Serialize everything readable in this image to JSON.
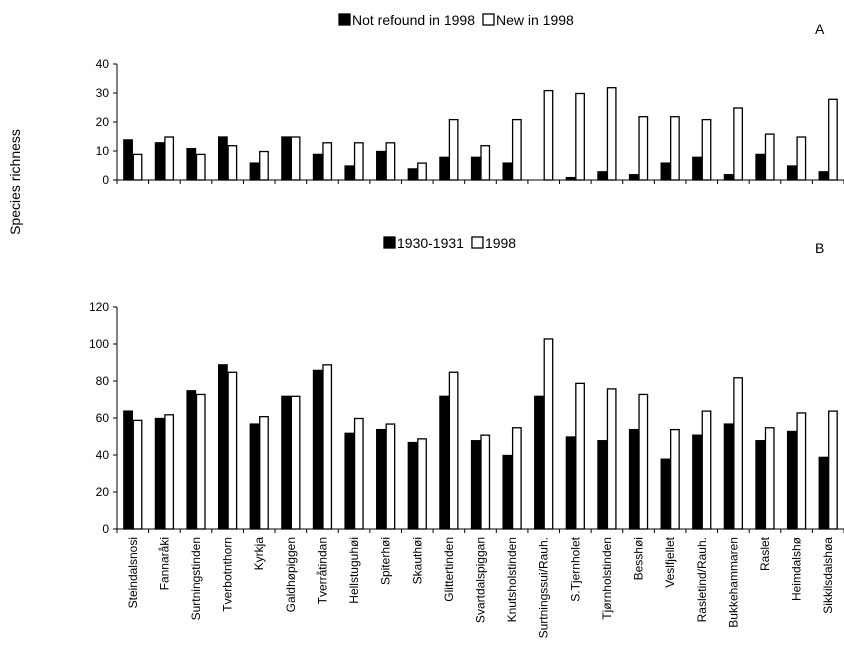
{
  "figure": {
    "ylabel": "Species richness"
  },
  "chart_data": [
    {
      "type": "bar",
      "panel_label": "A",
      "title": "",
      "xlabel": "",
      "ylabel": "Species richness",
      "ylim": [
        0,
        40
      ],
      "yticks": [
        0,
        10,
        20,
        30,
        40
      ],
      "grid": false,
      "legend_position": "top-center",
      "categories": [
        "Steindalsnosi",
        "Fannaråki",
        "Surtningstinden",
        "Tverbotnthorn",
        "Kyrkja",
        "Galdhøpiggen",
        "Tverråtindan",
        "Hellstuguhøi",
        "Spiterhøi",
        "Skauthøi",
        "Glittertinden",
        "Svartdalspiggan",
        "Knutsholstinden",
        "Surtningssui/Rauh.",
        "S.Tjernholet",
        "Tjørnholstinden",
        "Besshøi",
        "Veslfjellet",
        "Rasletind/Rauh.",
        "Bukkehammaren",
        "Raslet",
        "Heimdalshø",
        "Sikkilsdalshøa"
      ],
      "series": [
        {
          "name": "Not refound in 1998",
          "color": "#000000",
          "values": [
            14,
            13,
            11,
            15,
            6,
            15,
            9,
            5,
            10,
            4,
            8,
            8,
            6,
            0,
            1,
            3,
            2,
            6,
            8,
            2,
            9,
            5,
            3
          ]
        },
        {
          "name": "New in 1998",
          "color": "#ffffff",
          "values": [
            9,
            15,
            9,
            12,
            10,
            15,
            13,
            13,
            13,
            6,
            21,
            12,
            21,
            31,
            30,
            32,
            22,
            22,
            21,
            25,
            16,
            15,
            28
          ]
        }
      ]
    },
    {
      "type": "bar",
      "panel_label": "B",
      "title": "",
      "xlabel": "",
      "ylabel": "Species richness",
      "ylim": [
        0,
        120
      ],
      "yticks": [
        0,
        20,
        40,
        60,
        80,
        100,
        120
      ],
      "grid": false,
      "legend_position": "top-center",
      "categories": [
        "Steindalsnosi",
        "Fannaråki",
        "Surtningstinden",
        "Tverbotnthorn",
        "Kyrkja",
        "Galdhøpiggen",
        "Tverråtindan",
        "Hellstuguhøi",
        "Spiterhøi",
        "Skauthøi",
        "Glittertinden",
        "Svartdalspiggan",
        "Knutsholstinden",
        "Surtningssui/Rauh.",
        "S.Tjernholet",
        "Tjørnholstinden",
        "Besshøi",
        "Veslfjellet",
        "Rasletind/Rauh.",
        "Bukkehammaren",
        "Raslet",
        "Heimdalshø",
        "Sikkilsdalshøa"
      ],
      "series": [
        {
          "name": "1930-1931",
          "color": "#000000",
          "values": [
            64,
            60,
            75,
            89,
            57,
            72,
            86,
            52,
            54,
            47,
            72,
            48,
            40,
            72,
            50,
            48,
            54,
            38,
            51,
            57,
            48,
            53,
            39
          ]
        },
        {
          "name": "1998",
          "color": "#ffffff",
          "values": [
            59,
            62,
            73,
            85,
            61,
            72,
            89,
            60,
            57,
            49,
            85,
            51,
            55,
            103,
            79,
            76,
            73,
            54,
            64,
            82,
            55,
            63,
            64
          ]
        }
      ]
    }
  ]
}
